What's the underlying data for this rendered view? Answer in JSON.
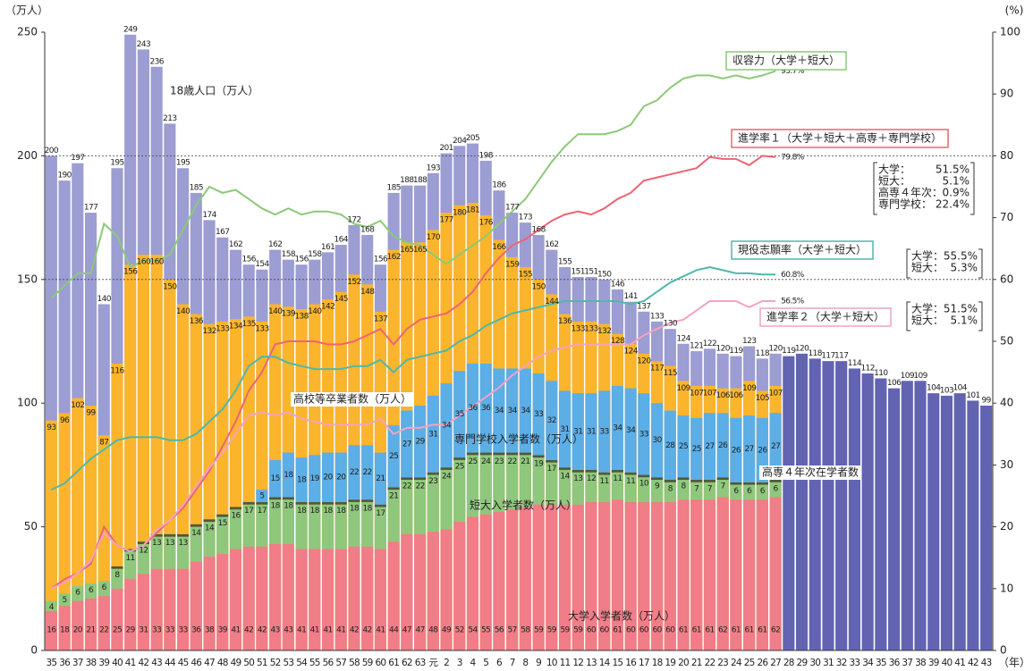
{
  "chart_data": {
    "type": "bar_line",
    "y_axis_label": "（万人）",
    "y2_axis_label": "(%)",
    "x_axis_label": "（年）",
    "categories": [
      "35",
      "36",
      "37",
      "38",
      "39",
      "40",
      "41",
      "42",
      "43",
      "44",
      "45",
      "46",
      "47",
      "48",
      "49",
      "50",
      "51",
      "52",
      "53",
      "54",
      "55",
      "56",
      "57",
      "58",
      "59",
      "60",
      "61",
      "62",
      "63",
      "元",
      "2",
      "3",
      "4",
      "5",
      "6",
      "7",
      "8",
      "9",
      "10",
      "11",
      "12",
      "13",
      "14",
      "15",
      "16",
      "17",
      "18",
      "19",
      "20",
      "21",
      "22",
      "23",
      "24",
      "25",
      "26",
      "27",
      "28",
      "29",
      "30",
      "31",
      "32",
      "33",
      "34",
      "35",
      "36",
      "37",
      "38",
      "39",
      "40",
      "41",
      "42",
      "43"
    ],
    "ylim": [
      0,
      250
    ],
    "yticks": [
      0,
      50,
      100,
      150,
      200,
      250
    ],
    "dashed_grid": [
      150,
      200
    ],
    "y2lim": [
      0,
      100
    ],
    "y2ticks": [
      0,
      10,
      20,
      30,
      40,
      50,
      60,
      70,
      80,
      90,
      100
    ],
    "projected_color": "#6264b2",
    "series": [
      {
        "name": "18歳人口（万人）",
        "color": "#9c9dd2",
        "stacked": false,
        "values": [
          200,
          190,
          197,
          177,
          140,
          195,
          249,
          243,
          236,
          213,
          195,
          185,
          174,
          167,
          162,
          156,
          154,
          162,
          158,
          156,
          158,
          161,
          164,
          172,
          168,
          156,
          185,
          188,
          188,
          193,
          201,
          204,
          205,
          198,
          186,
          177,
          173,
          168,
          162,
          155,
          151,
          151,
          150,
          146,
          141,
          137,
          133,
          130,
          124,
          121,
          122,
          120,
          119,
          123,
          118,
          120,
          119,
          120,
          118,
          117,
          117,
          114,
          112,
          110,
          106,
          109,
          109,
          104,
          103,
          104,
          101,
          99
        ]
      },
      {
        "name": "高校等卒業者数（万人）",
        "color": "#fab52c",
        "stacked": false,
        "values": [
          93,
          96,
          102,
          99,
          87,
          116,
          156,
          160,
          160,
          150,
          140,
          136,
          132,
          133,
          134,
          135,
          133,
          140,
          139,
          138,
          140,
          142,
          145,
          152,
          148,
          137,
          162,
          165,
          165,
          170,
          177,
          180,
          181,
          176,
          166,
          159,
          155,
          150,
          144,
          136,
          133,
          133,
          132,
          128,
          124,
          120,
          117,
          115,
          109,
          107,
          107,
          106,
          106,
          109,
          105,
          107,
          null,
          null,
          null,
          null,
          null,
          null,
          null,
          null,
          null,
          null,
          null,
          null,
          null,
          null,
          null,
          null
        ]
      },
      {
        "name": "大学入学者数（万人）",
        "color": "#f07d87",
        "stacked": true,
        "values": [
          16,
          18,
          20,
          21,
          22,
          25,
          29,
          31,
          33,
          33,
          33,
          36,
          38,
          39,
          41,
          42,
          42,
          43,
          43,
          41,
          41,
          41,
          41,
          42,
          42,
          41,
          44,
          47,
          47,
          48,
          49,
          52,
          54,
          55,
          56,
          57,
          58,
          59,
          59,
          59,
          59,
          60,
          60,
          61,
          60,
          60,
          60,
          60,
          61,
          61,
          61,
          62,
          61,
          61,
          61,
          62,
          null,
          null,
          null,
          null,
          null,
          null,
          null,
          null,
          null,
          null,
          null,
          null,
          null,
          null,
          null,
          null
        ]
      },
      {
        "name": "短大入学者数（万人）",
        "color": "#8fc77c",
        "stacked": true,
        "values": [
          4,
          5,
          6,
          6,
          6,
          8,
          11,
          12,
          13,
          13,
          13,
          14,
          14,
          15,
          16,
          17,
          17,
          18,
          18,
          18,
          18,
          18,
          18,
          18,
          18,
          17,
          21,
          22,
          22,
          23,
          24,
          25,
          25,
          24,
          23,
          22,
          21,
          19,
          17,
          14,
          13,
          12,
          11,
          11,
          11,
          10,
          9,
          8,
          8,
          7,
          7,
          7,
          6,
          6,
          6,
          6,
          null,
          null,
          null,
          null,
          null,
          null,
          null,
          null,
          null,
          null,
          null,
          null,
          null,
          null,
          null,
          null
        ]
      },
      {
        "name": "高専４年次在学者数",
        "color": "#4d5a3c",
        "stacked": true,
        "values": [
          null,
          null,
          null,
          null,
          null,
          1,
          1,
          1,
          1,
          1,
          1,
          1,
          1,
          1,
          1,
          1,
          1,
          1,
          1,
          1,
          1,
          1,
          1,
          1,
          1,
          1,
          1,
          1,
          1,
          1,
          1,
          1,
          1,
          1,
          1,
          1,
          1,
          1,
          1,
          1,
          1,
          1,
          1,
          1,
          1,
          1,
          1,
          1,
          1,
          1,
          1,
          1,
          1,
          1,
          1,
          1,
          null,
          null,
          null,
          null,
          null,
          null,
          null,
          null,
          null,
          null,
          null,
          null,
          null,
          null,
          null,
          null
        ]
      },
      {
        "name": "専門学校入学者数（万人）",
        "color": "#5caee6",
        "stacked": true,
        "values": [
          null,
          null,
          null,
          null,
          null,
          null,
          null,
          null,
          null,
          null,
          null,
          null,
          null,
          null,
          null,
          null,
          5,
          15,
          18,
          18,
          19,
          20,
          20,
          22,
          22,
          21,
          25,
          27,
          29,
          31,
          34,
          35,
          36,
          36,
          34,
          34,
          34,
          33,
          32,
          31,
          31,
          31,
          33,
          34,
          34,
          33,
          30,
          28,
          25,
          25,
          27,
          26,
          26,
          27,
          26,
          27,
          null,
          null,
          null,
          null,
          null,
          null,
          null,
          null,
          null,
          null,
          null,
          null,
          null,
          null,
          null,
          null
        ]
      }
    ],
    "line_series": [
      {
        "name": "収容力（大学＋短大）",
        "color": "#8cc97a",
        "axis": "y2",
        "end_label": "93.7%",
        "values": [
          57,
          59,
          61,
          61,
          69,
          67,
          62,
          63,
          63,
          64,
          68,
          72,
          75,
          74,
          74.5,
          73,
          71.5,
          70.5,
          71.5,
          70.5,
          71,
          71,
          70.5,
          69,
          68.5,
          69.5,
          67,
          66,
          65.5,
          64,
          62.5,
          64,
          65.5,
          67,
          69,
          71,
          73,
          76,
          79,
          81.5,
          83.5,
          83.5,
          83.5,
          84,
          85,
          88,
          89,
          91,
          92.5,
          93,
          93,
          92.5,
          93,
          92.5,
          93,
          93.7,
          null,
          null,
          null,
          null,
          null,
          null,
          null,
          null,
          null,
          null,
          null,
          null,
          null,
          null,
          null,
          null
        ]
      },
      {
        "name": "進学率１（大学＋短大＋高専＋専門学校）",
        "color": "#ee6474",
        "axis": "y2",
        "end_label": "79.8%",
        "values": [
          10,
          11.5,
          12.5,
          14,
          20,
          17,
          16,
          17,
          19,
          21,
          23,
          26,
          29,
          33,
          37,
          42,
          45,
          49.5,
          50,
          50,
          50,
          49.5,
          49.5,
          50,
          51,
          52,
          49.5,
          52,
          53.5,
          54,
          54.5,
          56,
          58,
          61,
          63.5,
          65.5,
          66.5,
          68,
          69.5,
          70.5,
          71,
          70.5,
          71.5,
          73,
          74,
          76,
          76.5,
          77,
          77.5,
          78,
          79.8,
          79.5,
          79.5,
          78.5,
          80,
          79.8,
          null,
          null,
          null,
          null,
          null,
          null,
          null,
          null,
          null,
          null,
          null,
          null,
          null,
          null,
          null,
          null
        ]
      },
      {
        "name": "現役志願率（大学＋短大）",
        "color": "#4fb8a8",
        "axis": "y2",
        "end_label": "60.8%",
        "values": [
          26,
          27,
          29,
          31,
          32.5,
          34,
          34.5,
          34.5,
          34.5,
          34,
          34,
          35,
          37,
          39,
          42,
          46,
          47.5,
          47.5,
          46.5,
          46,
          45.5,
          45.5,
          45.5,
          46,
          46,
          47,
          45,
          47,
          47.5,
          48,
          48.5,
          50,
          51,
          52.5,
          53.5,
          54.5,
          55,
          55.5,
          56,
          56.5,
          56.5,
          56.5,
          56.5,
          56.5,
          56,
          56.5,
          58,
          59.5,
          60.5,
          61.5,
          62,
          61.5,
          61,
          61,
          60.8,
          60.8,
          null,
          null,
          null,
          null,
          null,
          null,
          null,
          null,
          null,
          null,
          null,
          null,
          null,
          null,
          null,
          null
        ]
      },
      {
        "name": "進学率２（大学＋短大）",
        "color": "#f4a2c2",
        "axis": "y2",
        "end_label": "56.5%",
        "values": [
          10,
          11,
          12.5,
          14.5,
          19,
          17,
          16,
          17,
          19.5,
          21,
          23.5,
          26.5,
          29.5,
          32,
          35,
          38,
          38.5,
          38,
          38.5,
          37.5,
          37,
          36.5,
          36.5,
          36.5,
          36.5,
          37.5,
          35,
          36,
          36,
          36.5,
          36.5,
          38,
          39.5,
          41,
          42.5,
          44.5,
          46,
          47.5,
          48.5,
          49,
          49.5,
          49.5,
          49.5,
          49.5,
          49.5,
          51,
          52,
          53,
          53.5,
          55,
          56.5,
          56.5,
          56.5,
          55.5,
          56.5,
          56.5,
          null,
          null,
          null,
          null,
          null,
          null,
          null,
          null,
          null,
          null,
          null,
          null,
          null,
          null,
          null,
          null
        ]
      }
    ],
    "notes": [
      {
        "items": [
          {
            "label": "大学：",
            "value": "51.5%"
          },
          {
            "label": "短大：",
            "value": "5.1%"
          },
          {
            "label": "高専４年次：",
            "value": "0.9%"
          },
          {
            "label": "専門学校：",
            "value": "22.4%"
          }
        ]
      },
      {
        "items": [
          {
            "label": "大学：",
            "value": "55.5%"
          },
          {
            "label": "短大：",
            "value": "5.3%"
          }
        ]
      },
      {
        "items": [
          {
            "label": "大学：",
            "value": "51.5%"
          },
          {
            "label": "短大：",
            "value": "5.1%"
          }
        ]
      }
    ]
  }
}
